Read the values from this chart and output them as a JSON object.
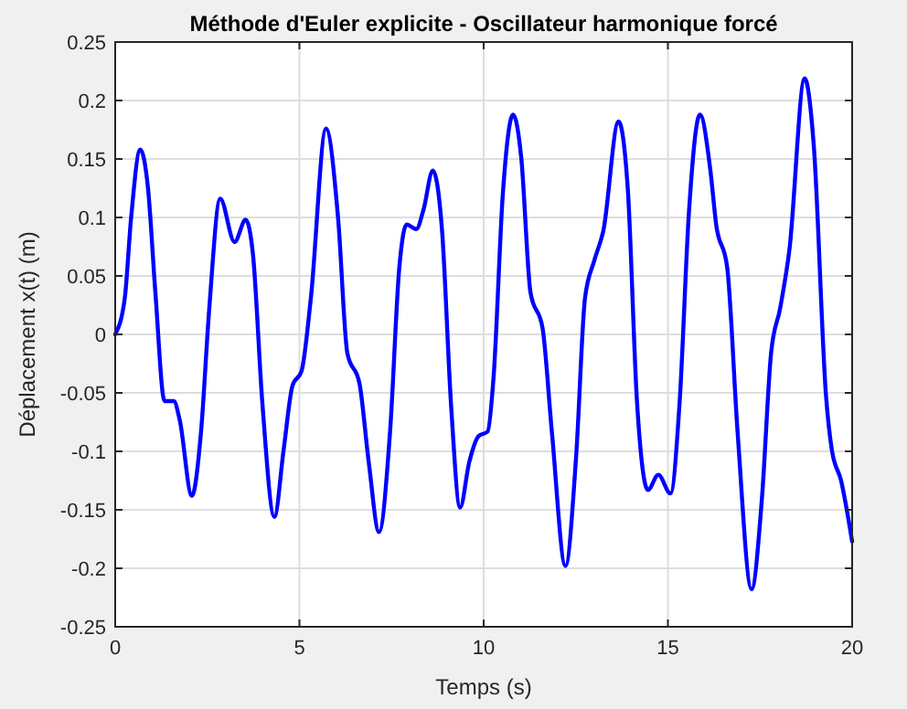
{
  "chart_data": {
    "type": "line",
    "title": "Méthode d'Euler explicite - Oscillateur harmonique forcé",
    "xlabel": "Temps (s)",
    "ylabel": "Déplacement x(t) (m)",
    "xlim": [
      0,
      20
    ],
    "xticks": [
      0,
      5,
      10,
      15,
      20
    ],
    "ylim": [
      -0.25,
      0.25
    ],
    "yticks": [
      -0.25,
      -0.2,
      -0.15,
      -0.1,
      -0.05,
      0,
      0.05,
      0.1,
      0.15,
      0.2,
      0.25
    ],
    "grid": true,
    "line_style": "solid",
    "series": [
      {
        "color": "#0000ff",
        "x": [
          0,
          0.26,
          0.43,
          0.68,
          0.89,
          1.09,
          1.34,
          1.59,
          1.75,
          2.08,
          2.33,
          2.55,
          2.85,
          3.24,
          3.54,
          3.74,
          3.99,
          4.32,
          4.57,
          4.81,
          5.06,
          5.31,
          5.72,
          6.05,
          6.3,
          6.63,
          6.88,
          7.16,
          7.46,
          7.71,
          7.91,
          8.17,
          8.37,
          8.62,
          8.87,
          9.12,
          9.36,
          9.61,
          9.86,
          10.11,
          10.27,
          10.52,
          10.8,
          11.02,
          11.27,
          11.6,
          11.85,
          12.22,
          12.51,
          12.75,
          13.0,
          13.25,
          13.66,
          13.91,
          14.16,
          14.46,
          14.74,
          15.07,
          15.32,
          15.57,
          15.87,
          16.15,
          16.31,
          16.61,
          16.89,
          17.27,
          17.55,
          17.8,
          18.05,
          18.3,
          18.71,
          18.96,
          19.29,
          19.45,
          19.7,
          20
        ],
        "values": [
          0,
          0.031,
          0.099,
          0.158,
          0.125,
          0.036,
          -0.057,
          -0.057,
          -0.073,
          -0.138,
          -0.083,
          0.021,
          0.116,
          0.079,
          0.098,
          0.068,
          -0.057,
          -0.156,
          -0.099,
          -0.044,
          -0.031,
          0.031,
          0.176,
          0.099,
          -0.016,
          -0.042,
          -0.109,
          -0.169,
          -0.083,
          0.057,
          0.094,
          0.09,
          0.107,
          0.14,
          0.089,
          -0.063,
          -0.148,
          -0.109,
          -0.087,
          -0.083,
          -0.036,
          0.12,
          0.188,
          0.151,
          0.036,
          0.005,
          -0.083,
          -0.198,
          -0.104,
          0.031,
          0.063,
          0.089,
          0.182,
          0.125,
          -0.057,
          -0.133,
          -0.12,
          -0.136,
          -0.057,
          0.104,
          0.188,
          0.141,
          0.094,
          0.057,
          -0.083,
          -0.218,
          -0.141,
          -0.016,
          0.023,
          0.073,
          0.219,
          0.161,
          -0.052,
          -0.099,
          -0.125,
          -0.177
        ]
      }
    ]
  }
}
